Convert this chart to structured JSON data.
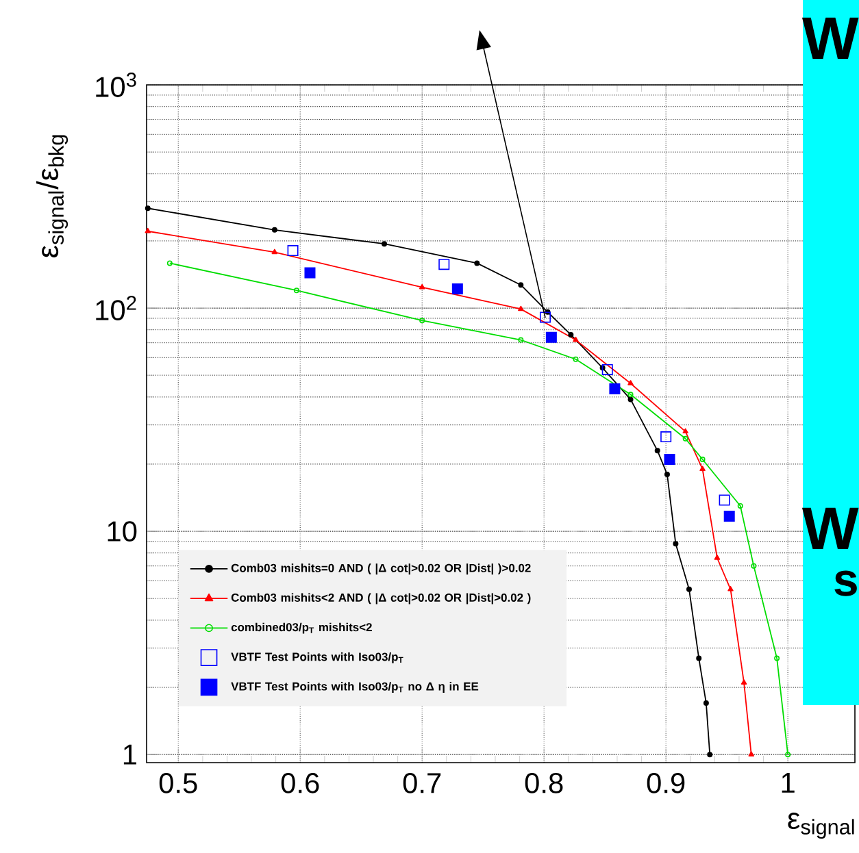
{
  "chart_data": {
    "type": "line",
    "xlabel": "ε$_{signal}$",
    "ylabel": "ε$_{signal}$/ε$_{bkg}$",
    "xlim": [
      0.474,
      1.055
    ],
    "ylim": [
      0.92,
      1000
    ],
    "log": "y",
    "xticks": [
      0.5,
      0.6,
      0.7,
      0.8,
      0.9,
      1
    ],
    "yticks": [
      {
        "value": 1,
        "label": "1"
      },
      {
        "value": 10,
        "label": "10"
      },
      {
        "value": 100,
        "label": "10$^{2}$"
      },
      {
        "value": 1000,
        "label": "10$^{3}$"
      }
    ],
    "grid": true,
    "legend": "bottom left",
    "annotations": [
      "W",
      "W",
      "s"
    ],
    "series": [
      {
        "name": "Comb03  mishits=0 AND ( |Δ cot|>0.02 OR |Dist| )>0.02",
        "color": "#000000",
        "marker": "circle",
        "x": [
          0.475,
          0.579,
          0.669,
          0.745,
          0.781,
          0.803,
          0.822,
          0.848,
          0.871,
          0.893,
          0.901,
          0.908,
          0.919,
          0.927,
          0.933,
          0.936
        ],
        "values": [
          280,
          224,
          194,
          159,
          127,
          96,
          76,
          54,
          39,
          23,
          18,
          8.8,
          5.5,
          2.7,
          1.7,
          1.0
        ]
      },
      {
        "name": "Comb03  mishits<2 AND ( |Δ cot|>0.02 OR |Dist|>0.02 )",
        "color": "#ff0000",
        "marker": "triangle",
        "x": [
          0.475,
          0.579,
          0.7,
          0.781,
          0.826,
          0.871,
          0.916,
          0.93,
          0.942,
          0.953,
          0.964,
          0.97
        ],
        "values": [
          221,
          178,
          124,
          99,
          72,
          46,
          28,
          19,
          7.6,
          5.5,
          2.1,
          1.0
        ]
      },
      {
        "name": "combined03/p$_{T}$ mishits<2",
        "color": "#00dd00",
        "marker": "circle",
        "x": [
          0.493,
          0.597,
          0.7,
          0.781,
          0.826,
          0.871,
          0.916,
          0.93,
          0.961,
          0.972,
          0.991,
          1.0
        ],
        "values": [
          159,
          120,
          88,
          72,
          59,
          41,
          26,
          21,
          13,
          7.0,
          2.7,
          1.0
        ]
      },
      {
        "name": "VBTF Test Points with Iso03/p$_{T}$",
        "color": "#0000ff",
        "type": "scatter",
        "marker": "square",
        "x": [
          0.594,
          0.718,
          0.801,
          0.852,
          0.9,
          0.948
        ],
        "values": [
          181,
          157,
          91,
          53,
          26.5,
          13.8
        ]
      },
      {
        "name": "VBTF Test Points with Iso03/p$_{T}$ no Δ η in EE",
        "color": "#0000ff",
        "type": "scatter",
        "marker": "square",
        "x": [
          0.608,
          0.729,
          0.806,
          0.858,
          0.903,
          0.952
        ],
        "values": [
          144,
          122,
          74,
          43.5,
          21,
          11.7
        ]
      }
    ]
  }
}
